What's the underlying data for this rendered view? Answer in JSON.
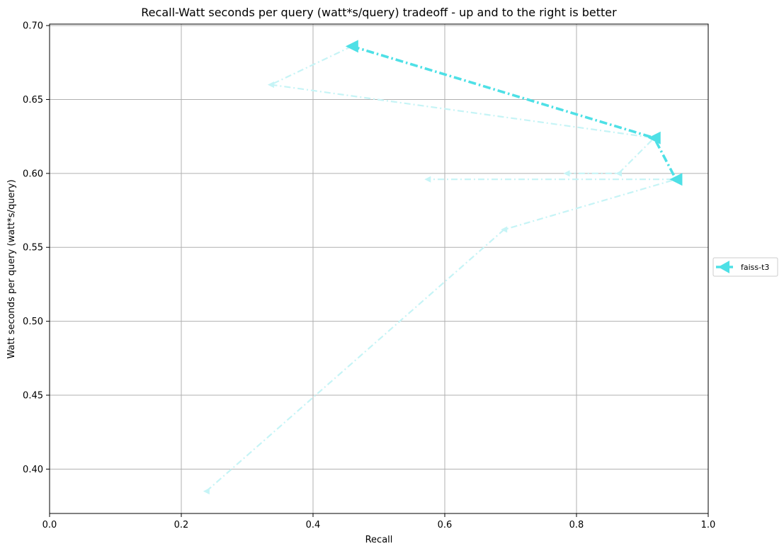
{
  "chart_data": {
    "type": "line",
    "title": "Recall-Watt seconds per query (watt*s/query) tradeoff - up and to the right is better",
    "xlabel": "Recall",
    "ylabel": "Watt seconds per query (watt*s/query)",
    "xlim": [
      0.0,
      1.0
    ],
    "ylim": [
      0.37,
      0.701
    ],
    "xticks": [
      0.0,
      0.2,
      0.4,
      0.6,
      0.8,
      1.0
    ],
    "xtick_labels": [
      "0.0",
      "0.2",
      "0.4",
      "0.6",
      "0.8",
      "1.0"
    ],
    "yticks": [
      0.4,
      0.45,
      0.5,
      0.55,
      0.6,
      0.65,
      0.7
    ],
    "ytick_labels": [
      "0.40",
      "0.45",
      "0.50",
      "0.55",
      "0.60",
      "0.65",
      "0.70"
    ],
    "grid": true,
    "legend_position": "center-right, outside plot",
    "series": [
      {
        "name": "faiss-t3",
        "color": "#4ee0e6",
        "style": "dash-dot",
        "marker": "left-triangle",
        "emphasis": "bold",
        "x": [
          0.459,
          0.918,
          0.951
        ],
        "y": [
          0.686,
          0.624,
          0.596
        ]
      },
      {
        "color": "#c6f4f6",
        "style": "dash-dot",
        "marker": "left-triangle",
        "emphasis": "faint",
        "x": [
          0.238,
          0.69,
          0.951,
          0.574
        ],
        "y": [
          0.385,
          0.562,
          0.596,
          0.596
        ]
      },
      {
        "color": "#c6f4f6",
        "style": "dash-dot",
        "marker": "left-triangle",
        "emphasis": "faint",
        "x": [
          0.336,
          0.918,
          0.864,
          0.785
        ],
        "y": [
          0.66,
          0.624,
          0.6,
          0.6
        ]
      },
      {
        "color": "#c6f4f6",
        "style": "dash-dot",
        "marker": "left-triangle",
        "emphasis": "faint",
        "x": [
          0.459,
          0.336
        ],
        "y": [
          0.686,
          0.66
        ]
      }
    ]
  }
}
